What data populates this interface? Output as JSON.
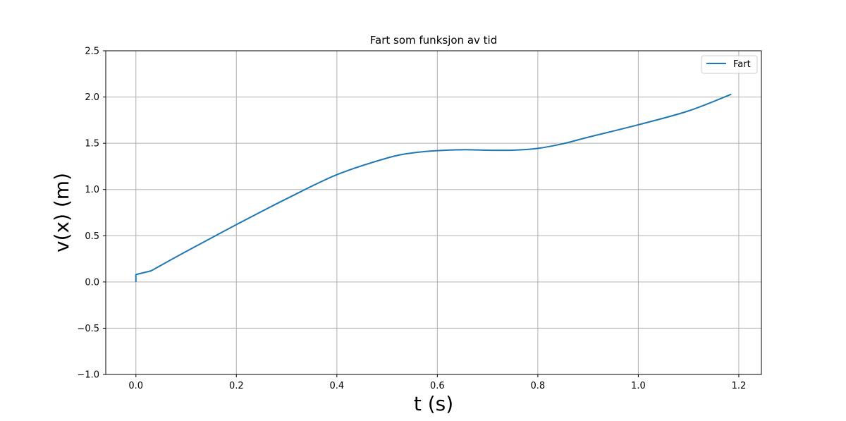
{
  "chart_data": {
    "type": "line",
    "title": "Fart som funksjon av tid",
    "xlabel": "t (s)",
    "ylabel": "v(x) (m)",
    "xlim": [
      -0.06,
      1.245
    ],
    "ylim": [
      -1.0,
      2.5
    ],
    "xticks": [
      0.0,
      0.2,
      0.4,
      0.6,
      0.8,
      1.0,
      1.2
    ],
    "xtick_labels": [
      "0.0",
      "0.2",
      "0.4",
      "0.6",
      "0.8",
      "1.0",
      "1.2"
    ],
    "yticks": [
      -1.0,
      -0.5,
      0.0,
      0.5,
      1.0,
      1.5,
      2.0,
      2.5
    ],
    "ytick_labels": [
      "−1.0",
      "−0.5",
      "0.0",
      "0.5",
      "1.0",
      "1.5",
      "2.0",
      "2.5"
    ],
    "grid": true,
    "legend_position": "top-right",
    "series": [
      {
        "name": "Fart",
        "color": "#1f77b4",
        "x": [
          0.0,
          0.0,
          0.03,
          0.1,
          0.2,
          0.3,
          0.4,
          0.5,
          0.55,
          0.6,
          0.65,
          0.7,
          0.75,
          0.8,
          0.85,
          0.9,
          1.0,
          1.1,
          1.185
        ],
        "y": [
          0.0,
          0.08,
          0.12,
          0.33,
          0.62,
          0.9,
          1.16,
          1.34,
          1.395,
          1.42,
          1.43,
          1.425,
          1.425,
          1.445,
          1.495,
          1.565,
          1.7,
          1.85,
          2.03
        ]
      }
    ]
  }
}
